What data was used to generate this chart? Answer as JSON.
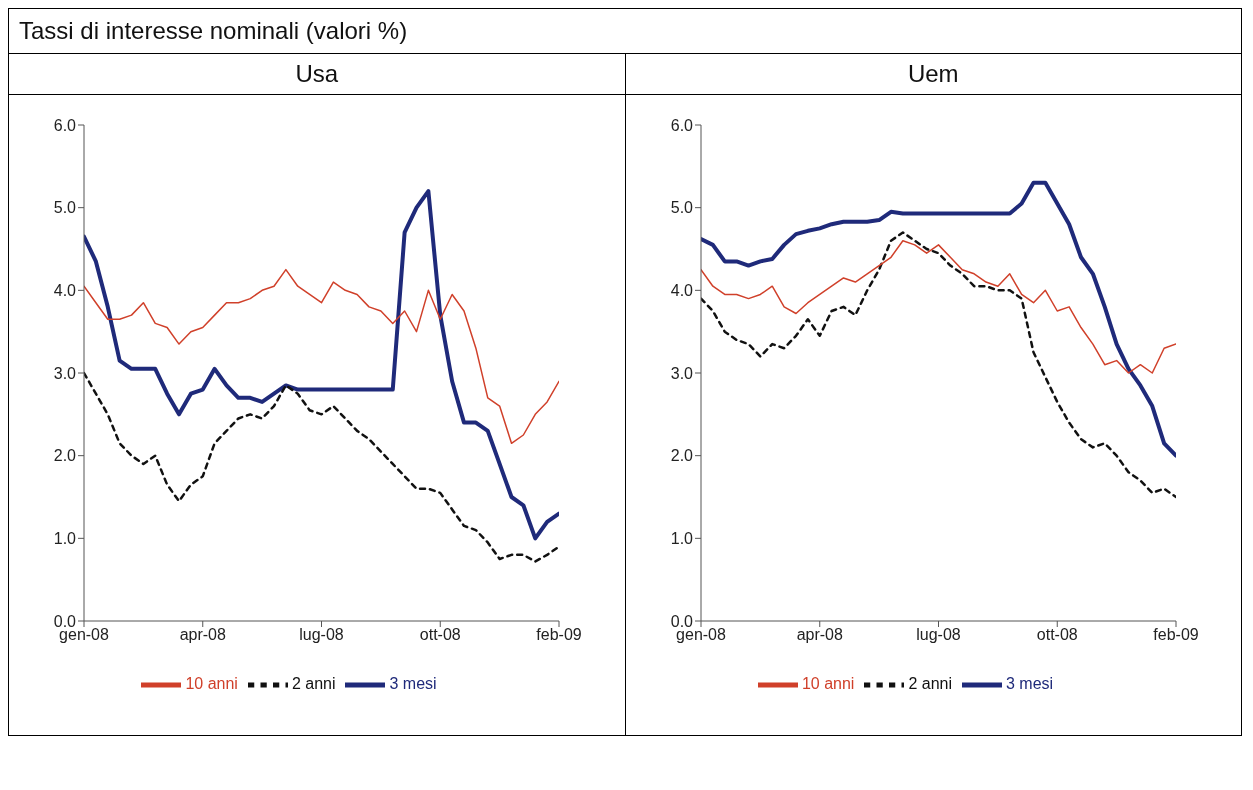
{
  "chart_data": [
    {
      "type": "line",
      "title": "Usa",
      "annotations": [
        "Tassi di interesse nominali (valori %)"
      ],
      "legend": "bottom",
      "marker": "none",
      "x": [
        "2008-01-01",
        "2008-01-11",
        "2008-01-21",
        "2008-01-31",
        "2008-02-10",
        "2008-02-20",
        "2008-03-01",
        "2008-03-11",
        "2008-03-21",
        "2008-03-31",
        "2008-04-10",
        "2008-04-20",
        "2008-04-30",
        "2008-05-10",
        "2008-05-20",
        "2008-05-30",
        "2008-06-09",
        "2008-06-19",
        "2008-06-29",
        "2008-07-09",
        "2008-07-19",
        "2008-07-29",
        "2008-08-08",
        "2008-08-18",
        "2008-08-28",
        "2008-09-07",
        "2008-09-17",
        "2008-09-27",
        "2008-10-07",
        "2008-10-17",
        "2008-10-27",
        "2008-11-06",
        "2008-11-16",
        "2008-11-26",
        "2008-12-06",
        "2008-12-16",
        "2008-12-26",
        "2009-01-05",
        "2009-01-15",
        "2009-01-25",
        "2009-02-04"
      ],
      "xlim": [
        "2008-01-01",
        "2009-02-04"
      ],
      "xticks": [
        {
          "value": "2008-01-01",
          "label": "gen-08"
        },
        {
          "value": "2008-04-10",
          "label": "apr-08"
        },
        {
          "value": "2008-07-19",
          "label": "lug-08"
        },
        {
          "value": "2008-10-27",
          "label": "ott-08"
        },
        {
          "value": "2009-02-04",
          "label": "feb-09"
        }
      ],
      "ylim": [
        0,
        6
      ],
      "yticks": [
        {
          "value": 0,
          "label": "0.0"
        },
        {
          "value": 1,
          "label": "1.0"
        },
        {
          "value": 2,
          "label": "2.0"
        },
        {
          "value": 3,
          "label": "3.0"
        },
        {
          "value": 4,
          "label": "4.0"
        },
        {
          "value": 5,
          "label": "5.0"
        },
        {
          "value": 6,
          "label": "6.0"
        }
      ],
      "series": [
        {
          "name": "3 mesi",
          "color": "#1f2a7a",
          "line_style": "solid",
          "values": [
            4.65,
            4.35,
            3.8,
            3.15,
            3.05,
            3.05,
            3.05,
            2.75,
            2.5,
            2.75,
            2.8,
            3.05,
            2.85,
            2.7,
            2.7,
            2.65,
            2.75,
            2.85,
            2.8,
            2.8,
            2.8,
            2.8,
            2.8,
            2.8,
            2.8,
            2.8,
            2.8,
            4.7,
            5.0,
            5.2,
            3.7,
            2.9,
            2.4,
            2.4,
            2.3,
            1.9,
            1.5,
            1.4,
            1.0,
            1.2,
            1.3
          ]
        },
        {
          "name": "2 anni",
          "color": "#111111",
          "line_style": "dashed",
          "values": [
            3.0,
            2.75,
            2.5,
            2.15,
            2.0,
            1.9,
            2.0,
            1.65,
            1.45,
            1.65,
            1.75,
            2.15,
            2.3,
            2.45,
            2.5,
            2.45,
            2.6,
            2.85,
            2.75,
            2.55,
            2.5,
            2.6,
            2.45,
            2.3,
            2.2,
            2.05,
            1.9,
            1.75,
            1.6,
            1.6,
            1.55,
            1.35,
            1.15,
            1.1,
            0.95,
            0.75,
            0.8,
            0.8,
            0.72,
            0.8,
            0.9
          ]
        },
        {
          "name": "10 anni",
          "color": "#d0402a",
          "line_style": "solid",
          "values": [
            4.05,
            3.85,
            3.65,
            3.65,
            3.7,
            3.85,
            3.6,
            3.55,
            3.35,
            3.5,
            3.55,
            3.7,
            3.85,
            3.85,
            3.9,
            4.0,
            4.05,
            4.25,
            4.05,
            3.95,
            3.85,
            4.1,
            4.0,
            3.95,
            3.8,
            3.75,
            3.6,
            3.75,
            3.5,
            4.0,
            3.65,
            3.95,
            3.75,
            3.3,
            2.7,
            2.6,
            2.15,
            2.25,
            2.5,
            2.65,
            2.9
          ]
        }
      ]
    },
    {
      "type": "line",
      "title": "Uem",
      "legend": "bottom",
      "marker": "none",
      "x": [
        "2008-01-01",
        "2008-01-11",
        "2008-01-21",
        "2008-01-31",
        "2008-02-10",
        "2008-02-20",
        "2008-03-01",
        "2008-03-11",
        "2008-03-21",
        "2008-03-31",
        "2008-04-10",
        "2008-04-20",
        "2008-04-30",
        "2008-05-10",
        "2008-05-20",
        "2008-05-30",
        "2008-06-09",
        "2008-06-19",
        "2008-06-29",
        "2008-07-09",
        "2008-07-19",
        "2008-07-29",
        "2008-08-08",
        "2008-08-18",
        "2008-08-28",
        "2008-09-07",
        "2008-09-17",
        "2008-09-27",
        "2008-10-07",
        "2008-10-17",
        "2008-10-27",
        "2008-11-06",
        "2008-11-16",
        "2008-11-26",
        "2008-12-06",
        "2008-12-16",
        "2008-12-26",
        "2009-01-05",
        "2009-01-15",
        "2009-01-25",
        "2009-02-04"
      ],
      "xlim": [
        "2008-01-01",
        "2009-02-04"
      ],
      "xticks": [
        {
          "value": "2008-01-01",
          "label": "gen-08"
        },
        {
          "value": "2008-04-10",
          "label": "apr-08"
        },
        {
          "value": "2008-07-19",
          "label": "lug-08"
        },
        {
          "value": "2008-10-27",
          "label": "ott-08"
        },
        {
          "value": "2009-02-04",
          "label": "feb-09"
        }
      ],
      "ylim": [
        0,
        6
      ],
      "yticks": [
        {
          "value": 0,
          "label": "0.0"
        },
        {
          "value": 1,
          "label": "1.0"
        },
        {
          "value": 2,
          "label": "2.0"
        },
        {
          "value": 3,
          "label": "3.0"
        },
        {
          "value": 4,
          "label": "4.0"
        },
        {
          "value": 5,
          "label": "5.0"
        },
        {
          "value": 6,
          "label": "6.0"
        }
      ],
      "series": [
        {
          "name": "3 mesi",
          "color": "#1f2a7a",
          "line_style": "solid",
          "values": [
            4.62,
            4.55,
            4.35,
            4.35,
            4.3,
            4.35,
            4.38,
            4.55,
            4.68,
            4.72,
            4.75,
            4.8,
            4.83,
            4.83,
            4.83,
            4.85,
            4.95,
            4.93,
            4.93,
            4.93,
            4.93,
            4.93,
            4.93,
            4.93,
            4.93,
            4.93,
            4.93,
            5.05,
            5.3,
            5.3,
            5.05,
            4.8,
            4.4,
            4.2,
            3.8,
            3.35,
            3.05,
            2.85,
            2.6,
            2.15,
            2.0
          ]
        },
        {
          "name": "2 anni",
          "color": "#111111",
          "line_style": "dashed",
          "values": [
            3.9,
            3.75,
            3.5,
            3.4,
            3.35,
            3.2,
            3.35,
            3.3,
            3.45,
            3.65,
            3.45,
            3.75,
            3.8,
            3.7,
            4.0,
            4.25,
            4.6,
            4.7,
            4.6,
            4.5,
            4.45,
            4.3,
            4.2,
            4.05,
            4.05,
            4.0,
            4.0,
            3.9,
            3.25,
            2.95,
            2.65,
            2.4,
            2.2,
            2.1,
            2.15,
            2.0,
            1.8,
            1.7,
            1.55,
            1.6,
            1.5
          ]
        },
        {
          "name": "10 anni",
          "color": "#d0402a",
          "line_style": "solid",
          "values": [
            4.25,
            4.05,
            3.95,
            3.95,
            3.9,
            3.95,
            4.05,
            3.8,
            3.72,
            3.85,
            3.95,
            4.05,
            4.15,
            4.1,
            4.2,
            4.3,
            4.4,
            4.6,
            4.55,
            4.45,
            4.55,
            4.4,
            4.25,
            4.2,
            4.1,
            4.05,
            4.2,
            3.95,
            3.85,
            4.0,
            3.75,
            3.8,
            3.55,
            3.35,
            3.1,
            3.15,
            3.0,
            3.1,
            3.0,
            3.3,
            3.35
          ]
        }
      ]
    }
  ]
}
